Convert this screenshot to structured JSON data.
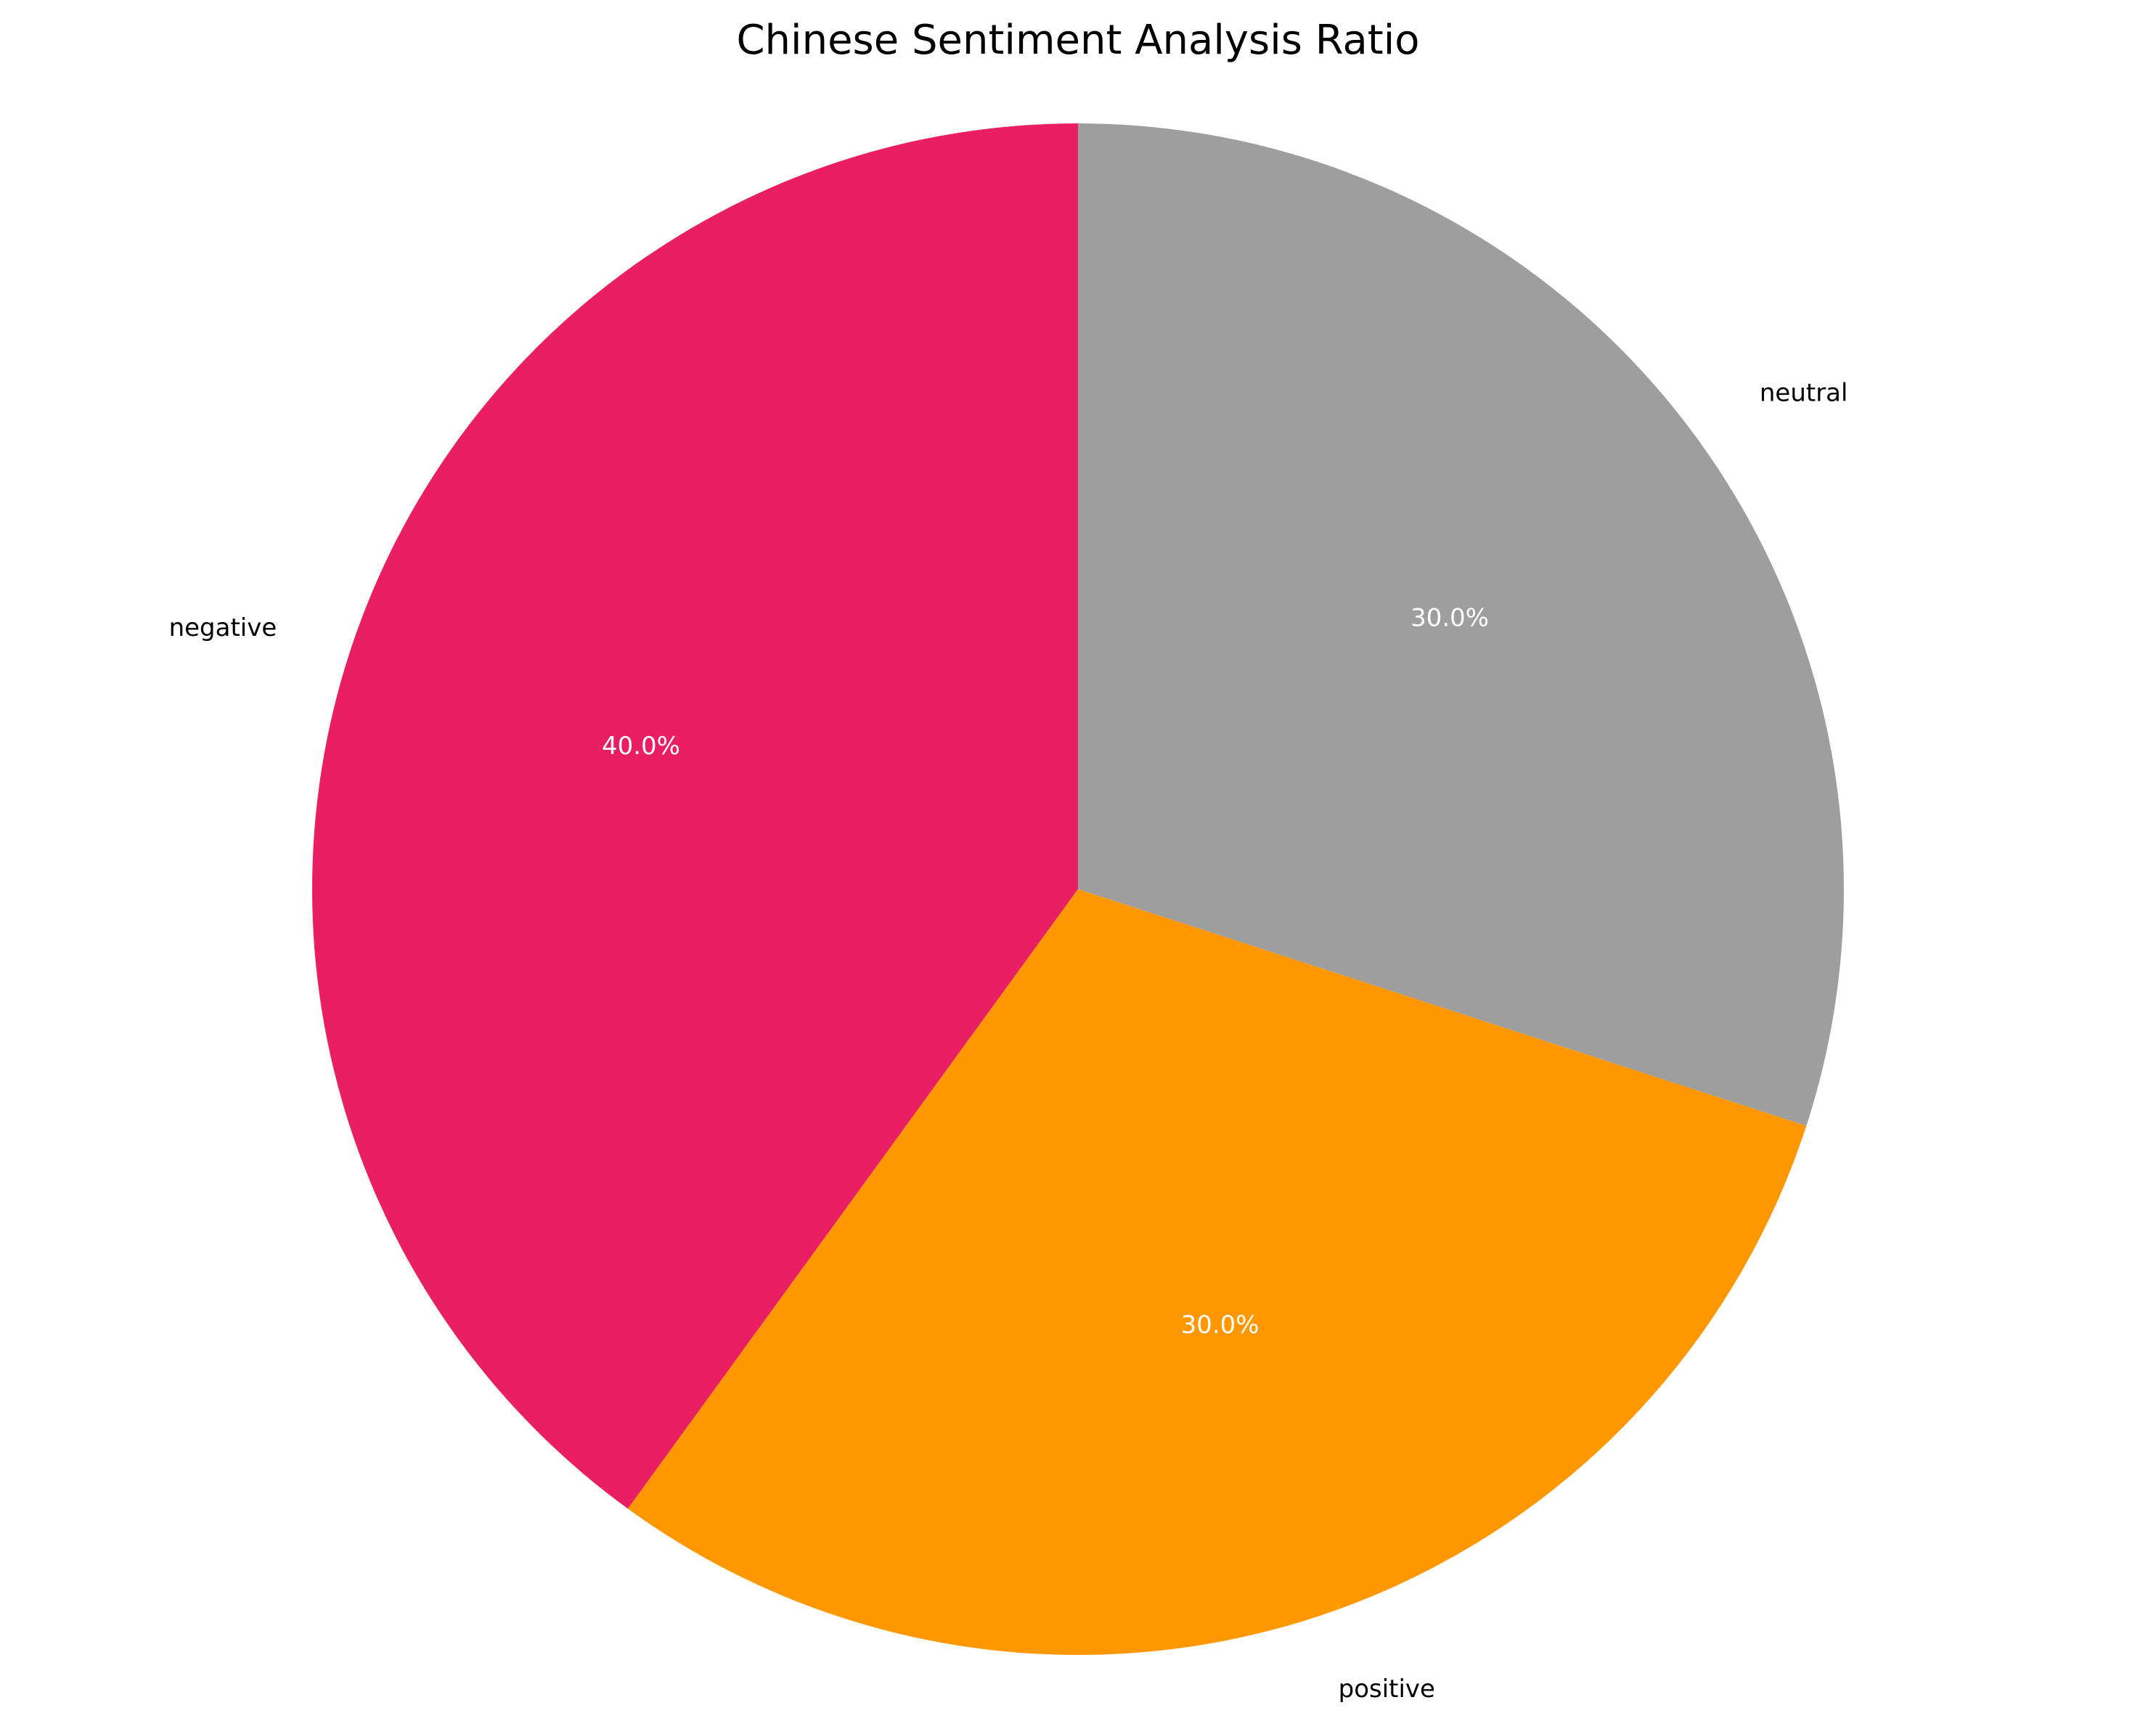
{
  "chart_data": {
    "type": "pie",
    "title": "Chinese Sentiment Analysis Ratio",
    "categories": [
      "negative",
      "positive",
      "neutral"
    ],
    "values": [
      40.0,
      30.0,
      30.0
    ],
    "data_labels": [
      "40.0%",
      "30.0%",
      "30.0%"
    ],
    "colors": [
      "#e91e63",
      "#ff9800",
      "#9e9e9e"
    ],
    "start_angle": "top",
    "direction": "counterclockwise",
    "legend": "none",
    "grid": false
  }
}
